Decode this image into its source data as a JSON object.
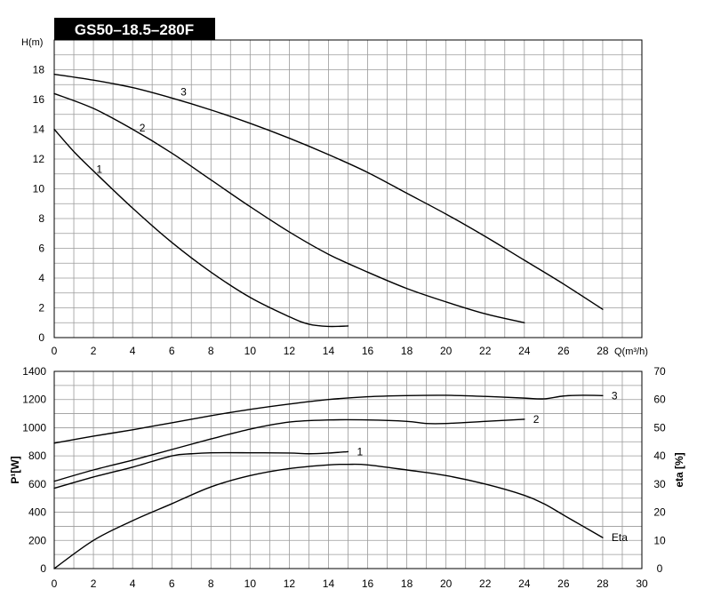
{
  "title": "GS50–18.5–280F",
  "colors": {
    "title_bg": "#000000",
    "title_text": "#ffffff",
    "grid": "#9a9a9a",
    "curve": "#000000"
  },
  "chart_data": [
    {
      "type": "line",
      "ylabel": "H(m)",
      "xlabel": "Q(m³/h)",
      "xlim": [
        0,
        30
      ],
      "ylim": [
        0,
        20
      ],
      "grid": true,
      "x_ticks": [
        0,
        2,
        4,
        6,
        8,
        10,
        12,
        14,
        16,
        18,
        20,
        22,
        24,
        26,
        28
      ],
      "y_ticks": [
        0,
        2,
        4,
        6,
        8,
        10,
        12,
        14,
        16,
        18
      ],
      "series": [
        {
          "name": "1",
          "points": [
            [
              0,
              14.0
            ],
            [
              1,
              12.5
            ],
            [
              2,
              11.2
            ],
            [
              4,
              8.7
            ],
            [
              6,
              6.4
            ],
            [
              8,
              4.4
            ],
            [
              10,
              2.7
            ],
            [
              12,
              1.4
            ],
            [
              13,
              0.9
            ],
            [
              14,
              0.75
            ],
            [
              15,
              0.78
            ]
          ]
        },
        {
          "name": "2",
          "points": [
            [
              0,
              16.4
            ],
            [
              2,
              15.4
            ],
            [
              4,
              14.0
            ],
            [
              6,
              12.4
            ],
            [
              8,
              10.6
            ],
            [
              10,
              8.8
            ],
            [
              12,
              7.1
            ],
            [
              14,
              5.6
            ],
            [
              16,
              4.4
            ],
            [
              18,
              3.3
            ],
            [
              20,
              2.4
            ],
            [
              22,
              1.6
            ],
            [
              24,
              1.0
            ]
          ]
        },
        {
          "name": "3",
          "points": [
            [
              0,
              17.7
            ],
            [
              2,
              17.3
            ],
            [
              4,
              16.8
            ],
            [
              6,
              16.1
            ],
            [
              8,
              15.3
            ],
            [
              10,
              14.4
            ],
            [
              12,
              13.4
            ],
            [
              14,
              12.3
            ],
            [
              16,
              11.1
            ],
            [
              18,
              9.7
            ],
            [
              20,
              8.3
            ],
            [
              22,
              6.8
            ],
            [
              24,
              5.2
            ],
            [
              26,
              3.6
            ],
            [
              28,
              1.9
            ]
          ]
        }
      ]
    },
    {
      "type": "line",
      "ylabel": "P¹[W]",
      "y2label": "eta  [%]",
      "xlim": [
        0,
        30
      ],
      "ylim": [
        0,
        1400
      ],
      "y2lim": [
        0,
        70
      ],
      "grid": true,
      "x_ticks": [
        0,
        2,
        4,
        6,
        8,
        10,
        12,
        14,
        16,
        18,
        20,
        22,
        24,
        26,
        28,
        30
      ],
      "y_ticks": [
        0,
        200,
        400,
        600,
        800,
        1000,
        1200,
        1400
      ],
      "y2_ticks": [
        0,
        10,
        20,
        30,
        40,
        50,
        60,
        70
      ],
      "series": [
        {
          "name": "1",
          "axis": "left",
          "points": [
            [
              0,
              570
            ],
            [
              2,
              650
            ],
            [
              4,
              720
            ],
            [
              6,
              800
            ],
            [
              7,
              815
            ],
            [
              8,
              822
            ],
            [
              10,
              822
            ],
            [
              12,
              820
            ],
            [
              13,
              815
            ],
            [
              14,
              820
            ],
            [
              15,
              830
            ]
          ]
        },
        {
          "name": "2",
          "axis": "left",
          "points": [
            [
              0,
              620
            ],
            [
              2,
              700
            ],
            [
              4,
              770
            ],
            [
              6,
              845
            ],
            [
              8,
              920
            ],
            [
              10,
              990
            ],
            [
              12,
              1040
            ],
            [
              14,
              1055
            ],
            [
              16,
              1055
            ],
            [
              18,
              1045
            ],
            [
              19,
              1030
            ],
            [
              20,
              1030
            ],
            [
              22,
              1045
            ],
            [
              24,
              1060
            ]
          ]
        },
        {
          "name": "3",
          "axis": "left",
          "points": [
            [
              0,
              890
            ],
            [
              2,
              940
            ],
            [
              4,
              985
            ],
            [
              6,
              1035
            ],
            [
              8,
              1085
            ],
            [
              10,
              1130
            ],
            [
              12,
              1168
            ],
            [
              14,
              1200
            ],
            [
              16,
              1220
            ],
            [
              18,
              1228
            ],
            [
              20,
              1230
            ],
            [
              22,
              1222
            ],
            [
              24,
              1210
            ],
            [
              25,
              1205
            ],
            [
              26,
              1225
            ],
            [
              27,
              1230
            ],
            [
              28,
              1228
            ]
          ]
        },
        {
          "name": "Eta",
          "axis": "right",
          "points": [
            [
              0,
              0
            ],
            [
              2,
              10
            ],
            [
              4,
              17
            ],
            [
              6,
              23
            ],
            [
              8,
              29
            ],
            [
              10,
              33
            ],
            [
              12,
              35.5
            ],
            [
              14,
              36.8
            ],
            [
              15,
              37
            ],
            [
              16,
              36.8
            ],
            [
              18,
              35
            ],
            [
              20,
              33
            ],
            [
              22,
              30
            ],
            [
              24,
              26
            ],
            [
              25,
              23
            ],
            [
              26,
              19
            ],
            [
              27,
              15
            ],
            [
              28,
              11
            ]
          ]
        }
      ]
    }
  ]
}
